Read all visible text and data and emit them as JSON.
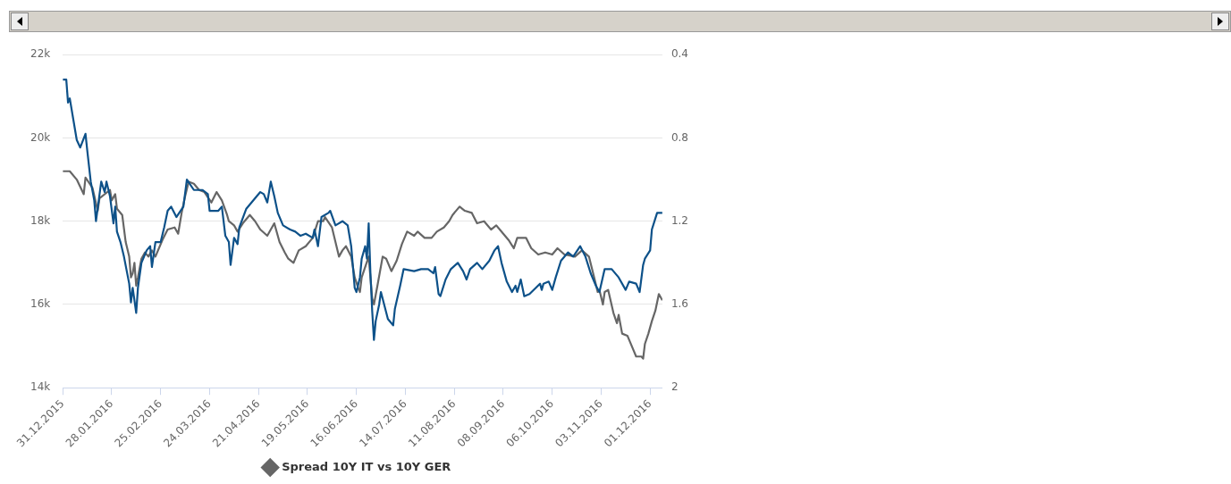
{
  "chart_data": {
    "type": "line",
    "legend": "bottom",
    "grid": "y",
    "marker": "none",
    "line_style": "solid",
    "xlim": [
      "2015-12-31",
      "2016-12-08"
    ],
    "xticks": [
      {
        "value": "2015-12-31",
        "label": "31.12.2015"
      },
      {
        "value": "2016-01-28",
        "label": "28.01.2016"
      },
      {
        "value": "2016-02-25",
        "label": "25.02.2016"
      },
      {
        "value": "2016-03-24",
        "label": "24.03.2016"
      },
      {
        "value": "2016-04-21",
        "label": "21.04.2016"
      },
      {
        "value": "2016-05-19",
        "label": "19.05.2016"
      },
      {
        "value": "2016-06-16",
        "label": "16.06.2016"
      },
      {
        "value": "2016-07-14",
        "label": "14.07.2016"
      },
      {
        "value": "2016-08-11",
        "label": "11.08.2016"
      },
      {
        "value": "2016-09-08",
        "label": "08.09.2016"
      },
      {
        "value": "2016-10-06",
        "label": "06.10.2016"
      },
      {
        "value": "2016-11-03",
        "label": "03.11.2016"
      },
      {
        "value": "2016-12-01",
        "label": "01.12.2016"
      }
    ],
    "ylim": [
      14000,
      22000
    ],
    "yticks": [
      {
        "value": 14000,
        "label": "14k"
      },
      {
        "value": 16000,
        "label": "16k"
      },
      {
        "value": 18000,
        "label": "18k"
      },
      {
        "value": 20000,
        "label": "20k"
      },
      {
        "value": 22000,
        "label": "22k"
      }
    ],
    "y2lim": [
      2,
      0.4
    ],
    "y2ticks": [
      {
        "value": 0.4,
        "label": "0.4"
      },
      {
        "value": 0.8,
        "label": "0.8"
      },
      {
        "value": 1.2,
        "label": "1.2"
      },
      {
        "value": 1.6,
        "label": "1.6"
      },
      2
    ],
    "series": [
      {
        "color": "#0d5189",
        "x": [
          "2015-12-31",
          "2016-01-02",
          "2016-01-03",
          "2016-01-04",
          "2016-01-06",
          "2016-01-08",
          "2016-01-10",
          "2016-01-13",
          "2016-01-14",
          "2016-01-16",
          "2016-01-18",
          "2016-01-19",
          "2016-01-22",
          "2016-01-24",
          "2016-01-25",
          "2016-01-27",
          "2016-01-29",
          "2016-01-30",
          "2016-01-31",
          "2016-02-02",
          "2016-02-04",
          "2016-02-07",
          "2016-02-08",
          "2016-02-09",
          "2016-02-11",
          "2016-02-12",
          "2016-02-14",
          "2016-02-17",
          "2016-02-19",
          "2016-02-20",
          "2016-02-22",
          "2016-02-25",
          "2016-02-27",
          "2016-02-29",
          "2016-03-02",
          "2016-03-05",
          "2016-03-09",
          "2016-03-11",
          "2016-03-15",
          "2016-03-20",
          "2016-03-23",
          "2016-03-24",
          "2016-03-29",
          "2016-03-31",
          "2016-04-02",
          "2016-04-04",
          "2016-04-05",
          "2016-04-07",
          "2016-04-09",
          "2016-04-10",
          "2016-04-14",
          "2016-04-19",
          "2016-04-22",
          "2016-04-24",
          "2016-04-26",
          "2016-04-28",
          "2016-04-30",
          "2016-05-02",
          "2016-05-05",
          "2016-05-09",
          "2016-05-12",
          "2016-05-15",
          "2016-05-18",
          "2016-05-22",
          "2016-05-23",
          "2016-05-25",
          "2016-05-27",
          "2016-05-31",
          "2016-06-01",
          "2016-06-04",
          "2016-06-08",
          "2016-06-11",
          "2016-06-13",
          "2016-06-15",
          "2016-06-16",
          "2016-06-18",
          "2016-06-19",
          "2016-06-21",
          "2016-06-22",
          "2016-06-23",
          "2016-06-24",
          "2016-06-25",
          "2016-06-26",
          "2016-06-27",
          "2016-06-29",
          "2016-06-30",
          "2016-07-04",
          "2016-07-07",
          "2016-07-08",
          "2016-07-11",
          "2016-07-13",
          "2016-07-19",
          "2016-07-23",
          "2016-07-27",
          "2016-07-30",
          "2016-07-31",
          "2016-08-02",
          "2016-08-03",
          "2016-08-06",
          "2016-08-09",
          "2016-08-13",
          "2016-08-16",
          "2016-08-18",
          "2016-08-20",
          "2016-08-24",
          "2016-08-27",
          "2016-08-31",
          "2016-09-03",
          "2016-09-05",
          "2016-09-07",
          "2016-09-10",
          "2016-09-13",
          "2016-09-15",
          "2016-09-16",
          "2016-09-18",
          "2016-09-20",
          "2016-09-23",
          "2016-09-29",
          "2016-09-30",
          "2016-10-01",
          "2016-10-04",
          "2016-10-06",
          "2016-10-08",
          "2016-10-11",
          "2016-10-15",
          "2016-10-18",
          "2016-10-22",
          "2016-10-25",
          "2016-10-28",
          "2016-10-31",
          "2016-11-02",
          "2016-11-05",
          "2016-11-09",
          "2016-11-13",
          "2016-11-17",
          "2016-11-19",
          "2016-11-23",
          "2016-11-25",
          "2016-11-27",
          "2016-11-28",
          "2016-12-01",
          "2016-12-02",
          "2016-12-05",
          "2016-12-08"
        ],
        "values": [
          21400,
          21400,
          20850,
          20950,
          20450,
          19950,
          19770,
          20100,
          19700,
          18950,
          18500,
          18000,
          18950,
          18700,
          18950,
          18600,
          17950,
          18350,
          17750,
          17500,
          17150,
          16500,
          16050,
          16400,
          15800,
          16400,
          17000,
          17300,
          17400,
          16900,
          17500,
          17500,
          17850,
          18250,
          18350,
          18100,
          18350,
          19000,
          18750,
          18750,
          18650,
          18250,
          18250,
          18350,
          17650,
          17500,
          16950,
          17600,
          17450,
          17850,
          18300,
          18550,
          18700,
          18650,
          18450,
          18950,
          18600,
          18200,
          17900,
          17800,
          17750,
          17650,
          17700,
          17600,
          17800,
          17400,
          18100,
          18200,
          18250,
          17900,
          18000,
          17900,
          17400,
          16400,
          16300,
          16650,
          17100,
          17400,
          17100,
          17950,
          16750,
          15850,
          15150,
          15600,
          16000,
          16300,
          15650,
          15500,
          15900,
          16450,
          16850,
          16800,
          16850,
          16850,
          16750,
          16900,
          16250,
          16200,
          16600,
          16850,
          17000,
          16800,
          16600,
          16850,
          17000,
          16850,
          17050,
          17300,
          17400,
          17000,
          16550,
          16300,
          16450,
          16300,
          16600,
          16200,
          16250,
          16500,
          16350,
          16500,
          16550,
          16350,
          16650,
          17050,
          17250,
          17150,
          17400,
          17150,
          16750,
          16450,
          16300,
          16850,
          16850,
          16650,
          16350,
          16550,
          16500,
          16300,
          16950,
          17100,
          17300,
          17800,
          18200,
          18200
        ]
      },
      {
        "name": "Spread 10Y IT vs 10Y GER",
        "color": "#666666",
        "axis": "y2",
        "x": [
          "2015-12-31",
          "2016-01-04",
          "2016-01-08",
          "2016-01-12",
          "2016-01-13",
          "2016-01-17",
          "2016-01-20",
          "2016-01-21",
          "2016-01-27",
          "2016-01-28",
          "2016-01-30",
          "2016-01-31",
          "2016-02-03",
          "2016-02-05",
          "2016-02-07",
          "2016-02-08",
          "2016-02-09",
          "2016-02-10",
          "2016-02-11",
          "2016-02-12",
          "2016-02-14",
          "2016-02-16",
          "2016-02-18",
          "2016-02-20",
          "2016-02-22",
          "2016-02-26",
          "2016-02-29",
          "2016-03-04",
          "2016-03-06",
          "2016-03-08",
          "2016-03-10",
          "2016-03-12",
          "2016-03-15",
          "2016-03-18",
          "2016-03-21",
          "2016-03-25",
          "2016-03-28",
          "2016-03-31",
          "2016-04-03",
          "2016-04-04",
          "2016-04-07",
          "2016-04-09",
          "2016-04-12",
          "2016-04-16",
          "2016-04-19",
          "2016-04-22",
          "2016-04-26",
          "2016-04-28",
          "2016-04-30",
          "2016-05-03",
          "2016-05-06",
          "2016-05-08",
          "2016-05-11",
          "2016-05-14",
          "2016-05-18",
          "2016-05-22",
          "2016-05-25",
          "2016-05-28",
          "2016-05-29",
          "2016-06-02",
          "2016-06-04",
          "2016-06-06",
          "2016-06-08",
          "2016-06-10",
          "2016-06-13",
          "2016-06-15",
          "2016-06-17",
          "2016-06-18",
          "2016-06-19",
          "2016-06-23",
          "2016-06-24",
          "2016-06-25",
          "2016-06-26",
          "2016-06-28",
          "2016-07-01",
          "2016-07-03",
          "2016-07-06",
          "2016-07-09",
          "2016-07-12",
          "2016-07-15",
          "2016-07-19",
          "2016-07-21",
          "2016-07-25",
          "2016-07-29",
          "2016-08-01",
          "2016-08-05",
          "2016-08-08",
          "2016-08-10",
          "2016-08-14",
          "2016-08-17",
          "2016-08-21",
          "2016-08-24",
          "2016-08-28",
          "2016-09-01",
          "2016-09-04",
          "2016-09-08",
          "2016-09-11",
          "2016-09-14",
          "2016-09-16",
          "2016-09-21",
          "2016-09-24",
          "2016-09-28",
          "2016-10-02",
          "2016-10-06",
          "2016-10-09",
          "2016-10-13",
          "2016-10-19",
          "2016-10-23",
          "2016-10-27",
          "2016-10-30",
          "2016-11-01",
          "2016-11-02",
          "2016-11-04",
          "2016-11-05",
          "2016-11-07",
          "2016-11-10",
          "2016-11-12",
          "2016-11-13",
          "2016-11-15",
          "2016-11-18",
          "2016-11-21",
          "2016-11-23",
          "2016-11-26",
          "2016-11-27",
          "2016-11-28",
          "2016-11-30",
          "2016-12-02",
          "2016-12-04",
          "2016-12-06",
          "2016-12-08"
        ],
        "values": [
          0.96,
          0.96,
          1.0,
          1.07,
          0.99,
          1.04,
          1.15,
          1.09,
          1.05,
          1.1,
          1.07,
          1.14,
          1.17,
          1.3,
          1.37,
          1.47,
          1.45,
          1.4,
          1.51,
          1.47,
          1.38,
          1.35,
          1.37,
          1.34,
          1.37,
          1.29,
          1.24,
          1.23,
          1.26,
          1.16,
          1.08,
          1.01,
          1.02,
          1.05,
          1.06,
          1.11,
          1.06,
          1.1,
          1.17,
          1.2,
          1.22,
          1.25,
          1.21,
          1.17,
          1.2,
          1.24,
          1.27,
          1.24,
          1.21,
          1.3,
          1.35,
          1.38,
          1.4,
          1.34,
          1.32,
          1.28,
          1.2,
          1.2,
          1.18,
          1.23,
          1.3,
          1.37,
          1.34,
          1.32,
          1.37,
          1.47,
          1.52,
          1.54,
          1.47,
          1.37,
          1.47,
          1.57,
          1.6,
          1.51,
          1.37,
          1.38,
          1.44,
          1.39,
          1.31,
          1.25,
          1.27,
          1.25,
          1.28,
          1.28,
          1.25,
          1.23,
          1.2,
          1.17,
          1.13,
          1.15,
          1.16,
          1.21,
          1.2,
          1.24,
          1.22,
          1.26,
          1.29,
          1.33,
          1.28,
          1.28,
          1.33,
          1.36,
          1.35,
          1.36,
          1.33,
          1.36,
          1.37,
          1.34,
          1.37,
          1.47,
          1.54,
          1.53,
          1.6,
          1.54,
          1.53,
          1.64,
          1.69,
          1.65,
          1.74,
          1.75,
          1.81,
          1.85,
          1.85,
          1.86,
          1.79,
          1.74,
          1.68,
          1.63,
          1.55,
          1.58
        ]
      }
    ]
  }
}
